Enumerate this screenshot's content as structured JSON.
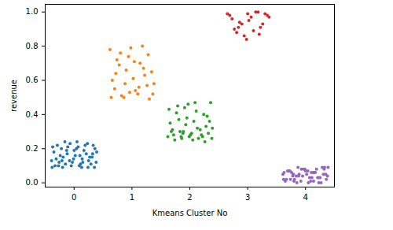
{
  "chart_data": {
    "type": "scatter",
    "x_label": "Kmeans Cluster No",
    "y_label": "revenue",
    "xlim": [
      -0.5,
      4.5
    ],
    "ylim": [
      -0.025,
      1.045
    ],
    "xticks": [
      0,
      1,
      2,
      3,
      4
    ],
    "yticks": [
      {
        "value": 0,
        "label": "0.0"
      },
      {
        "value": 0.2,
        "label": "0.2"
      },
      {
        "value": 0.4,
        "label": "0.4"
      },
      {
        "value": 0.6,
        "label": "0.6"
      },
      {
        "value": 0.8,
        "label": "0.8"
      },
      {
        "value": 1,
        "label": "1.0"
      }
    ],
    "grid": false,
    "series": [
      {
        "color": "#1f77b4",
        "x": [
          -0.38,
          -0.31,
          -0.22,
          -0.15,
          -0.07,
          0.02,
          0.09,
          0.17,
          0.25,
          0.33,
          0.38,
          -0.35,
          -0.27,
          -0.19,
          -0.11,
          -0.03,
          0.05,
          0.13,
          0.21,
          0.29,
          0.36,
          -0.39,
          -0.29,
          -0.2,
          -0.12,
          -0.01,
          0.07,
          0.15,
          0.23,
          0.31,
          0.39,
          -0.33,
          -0.24,
          -0.16,
          -0.08,
          0.0,
          0.11,
          0.19,
          0.27,
          0.35,
          -0.37,
          -0.26,
          -0.13,
          -0.05,
          0.04,
          0.14,
          0.24,
          0.32,
          -0.21,
          0.1
        ],
        "values": [
          0.09,
          0.14,
          0.2,
          0.11,
          0.23,
          0.16,
          0.1,
          0.19,
          0.13,
          0.22,
          0.12,
          0.18,
          0.1,
          0.15,
          0.21,
          0.12,
          0.24,
          0.09,
          0.17,
          0.11,
          0.2,
          0.13,
          0.22,
          0.09,
          0.17,
          0.14,
          0.21,
          0.12,
          0.23,
          0.15,
          0.18,
          0.1,
          0.16,
          0.24,
          0.13,
          0.19,
          0.11,
          0.22,
          0.15,
          0.09,
          0.21,
          0.12,
          0.19,
          0.1,
          0.2,
          0.14,
          0.09,
          0.17,
          0.13,
          0.16
        ]
      },
      {
        "color": "#ff7f0e",
        "x": [
          0.62,
          0.7,
          0.78,
          0.86,
          0.94,
          1.02,
          1.1,
          1.18,
          1.26,
          1.34,
          0.66,
          0.74,
          0.82,
          0.9,
          0.98,
          1.06,
          1.14,
          1.22,
          1.3,
          1.38,
          0.64,
          0.72,
          0.8,
          0.88,
          0.96,
          1.04,
          1.12,
          1.2,
          1.28,
          1.36
        ],
        "values": [
          0.78,
          0.55,
          0.69,
          0.5,
          0.74,
          0.61,
          0.52,
          0.8,
          0.57,
          0.65,
          0.6,
          0.72,
          0.51,
          0.66,
          0.79,
          0.54,
          0.7,
          0.63,
          0.49,
          0.58,
          0.5,
          0.64,
          0.76,
          0.58,
          0.53,
          0.71,
          0.56,
          0.67,
          0.75,
          0.52
        ]
      },
      {
        "color": "#2ca02c",
        "x": [
          1.62,
          1.7,
          1.79,
          1.86,
          1.95,
          2.03,
          2.11,
          2.2,
          2.28,
          2.36,
          1.66,
          1.74,
          1.83,
          1.91,
          1.99,
          2.07,
          2.15,
          2.24,
          2.32,
          2.39,
          1.64,
          1.72,
          1.81,
          1.89,
          1.97,
          2.05,
          2.13,
          2.22,
          2.3,
          2.38,
          1.68,
          1.77,
          1.85,
          1.93,
          2.01,
          2.09,
          2.18,
          2.26,
          2.34,
          1.88
        ],
        "values": [
          0.27,
          0.31,
          0.45,
          0.26,
          0.38,
          0.29,
          0.42,
          0.28,
          0.33,
          0.47,
          0.35,
          0.25,
          0.3,
          0.44,
          0.27,
          0.36,
          0.26,
          0.4,
          0.29,
          0.32,
          0.43,
          0.28,
          0.37,
          0.3,
          0.46,
          0.25,
          0.32,
          0.27,
          0.39,
          0.26,
          0.3,
          0.41,
          0.27,
          0.34,
          0.28,
          0.47,
          0.31,
          0.24,
          0.36,
          0.29
        ]
      },
      {
        "color": "#d62728",
        "x": [
          2.65,
          2.73,
          2.81,
          2.9,
          2.98,
          3.06,
          3.14,
          3.22,
          3.3,
          3.37,
          2.69,
          2.77,
          2.86,
          2.94,
          3.02,
          3.1,
          3.18,
          3.26,
          3.34,
          2.84,
          3.0,
          3.2
        ],
        "values": [
          0.99,
          0.96,
          0.88,
          0.93,
          0.84,
          0.97,
          1.0,
          0.91,
          0.99,
          0.97,
          0.98,
          0.9,
          0.94,
          0.86,
          0.95,
          0.89,
          1.0,
          0.93,
          0.98,
          0.91,
          0.99,
          0.87
        ]
      },
      {
        "color": "#9467bd",
        "x": [
          3.62,
          3.69,
          3.78,
          3.85,
          3.93,
          4.02,
          4.09,
          4.17,
          4.25,
          4.33,
          4.38,
          3.65,
          3.73,
          3.81,
          3.89,
          3.97,
          4.05,
          4.13,
          4.21,
          4.29,
          4.36,
          3.61,
          3.71,
          3.8,
          3.88,
          3.99,
          4.07,
          4.15,
          4.23,
          4.31,
          4.39,
          3.67,
          3.76,
          3.84,
          3.92,
          4.0,
          4.11,
          4.19,
          4.27,
          4.35,
          3.63,
          3.74,
          3.87,
          3.95,
          4.04,
          4.14,
          4.24,
          4.32,
          3.79,
          4.1
        ],
        "values": [
          0.02,
          0.07,
          0.04,
          0.0,
          0.08,
          0.05,
          0.01,
          0.06,
          0.03,
          0.09,
          0.04,
          0.01,
          0.07,
          0.02,
          0.05,
          0.08,
          0.0,
          0.06,
          0.03,
          0.09,
          0.02,
          0.05,
          0.07,
          0.01,
          0.04,
          0.08,
          0.03,
          0.06,
          0.0,
          0.05,
          0.09,
          0.02,
          0.06,
          0.04,
          0.01,
          0.07,
          0.03,
          0.08,
          0.0,
          0.05,
          0.06,
          0.02,
          0.09,
          0.04,
          0.07,
          0.01,
          0.03,
          0.08,
          0.05,
          0.06
        ]
      }
    ]
  }
}
